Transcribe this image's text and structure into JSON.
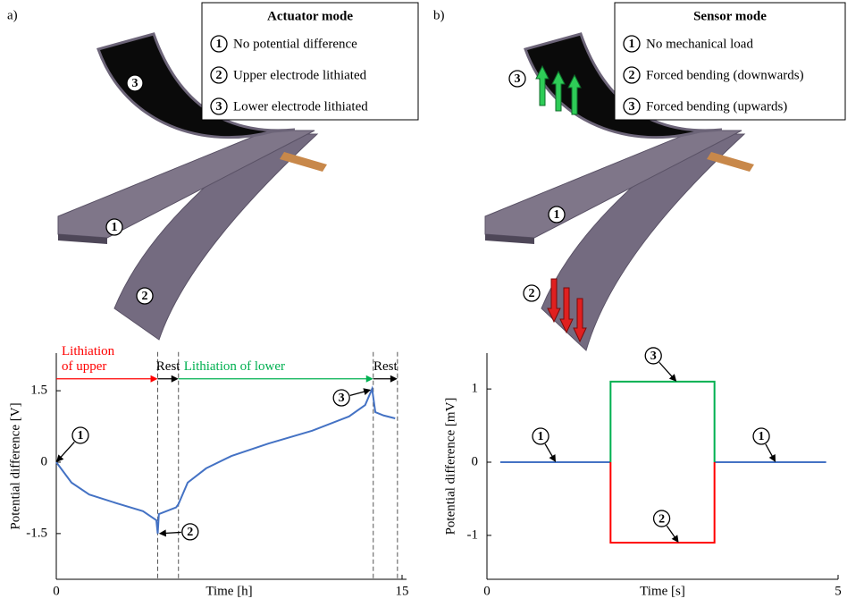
{
  "panels": [
    {
      "label": "a)",
      "mode_box": {
        "title": "Actuator mode",
        "items": [
          {
            "number": "1",
            "text": "No potential difference"
          },
          {
            "number": "2",
            "text": "Upper electrode lithiated"
          },
          {
            "number": "3",
            "text": "Lower electrode lithiated"
          }
        ]
      },
      "markers": [
        "1",
        "2",
        "3"
      ]
    },
    {
      "label": "b)",
      "mode_box": {
        "title": "Sensor mode",
        "items": [
          {
            "number": "1",
            "text": "No mechanical load"
          },
          {
            "number": "2",
            "text": "Forced bending (downwards)"
          },
          {
            "number": "3",
            "text": "Forced bending (upwards)"
          }
        ]
      },
      "markers": [
        "1",
        "2",
        "3"
      ]
    }
  ],
  "chart_data": [
    {
      "type": "line",
      "xlabel": "Time [h]",
      "ylabel": "Potential difference [V]",
      "x": [
        0,
        0.66,
        1.43,
        2.6,
        3.76,
        4.34,
        4.4,
        4.45,
        5.2,
        5.3,
        5.7,
        6.5,
        7.6,
        9.2,
        11.1,
        12.7,
        13.4,
        13.7,
        13.84,
        14.2,
        14.7
      ],
      "series": [
        {
          "color": "#4472c4",
          "values": [
            0,
            -0.43,
            -0.68,
            -0.86,
            -1.03,
            -1.22,
            -1.5,
            -1.09,
            -0.95,
            -0.88,
            -0.43,
            -0.13,
            0.13,
            0.39,
            0.66,
            0.96,
            1.2,
            1.54,
            1.05,
            0.98,
            0.92
          ]
        }
      ],
      "xlim": [
        0,
        15
      ],
      "ylim": [
        -2.46,
        2.29
      ],
      "xticks": [
        0,
        15
      ],
      "yticks": [
        1.5,
        0,
        -1.5
      ],
      "phases": [
        {
          "label": [
            "Lithiation",
            "of upper"
          ],
          "color": "#ff0000",
          "from": 0,
          "to": 4.4
        },
        {
          "label": [
            "Rest"
          ],
          "color": "#000000",
          "from": 4.4,
          "to": 5.3
        },
        {
          "label": [
            "Lithiation of lower"
          ],
          "color": "#00b050",
          "from": 5.3,
          "to": 13.75
        },
        {
          "label": [
            "Rest"
          ],
          "color": "#000000",
          "from": 13.75,
          "to": 14.8
        }
      ],
      "phase_level": 1.75,
      "annotations": [
        {
          "text": "1",
          "x": 0,
          "y": 0
        },
        {
          "text": "2",
          "x": 4.45,
          "y": -1.5
        },
        {
          "text": "3",
          "x": 13.65,
          "y": 1.52
        }
      ]
    },
    {
      "type": "line",
      "xlabel": "Time [s]",
      "ylabel": "Potential difference [mV]",
      "x": [
        0.19,
        1.76,
        1.76,
        3.24,
        3.24,
        4.83
      ],
      "series": [
        {
          "color": "#4472c4",
          "values": [
            0,
            0,
            null,
            null,
            0,
            0
          ]
        },
        {
          "color": "#00b050",
          "values": [
            null,
            0,
            1.1,
            1.1,
            0,
            null
          ]
        },
        {
          "color": "#ff0000",
          "values": [
            null,
            0,
            -1.1,
            -1.1,
            0,
            null
          ]
        }
      ],
      "xlim": [
        0,
        5
      ],
      "ylim": [
        -1.6,
        1.49
      ],
      "xticks": [
        0,
        5
      ],
      "yticks": [
        1,
        0,
        -1
      ],
      "annotations": [
        {
          "text": "1",
          "x": 0.98,
          "y": 0
        },
        {
          "text": "1",
          "x": 4.11,
          "y": 0
        },
        {
          "text": "3",
          "x": 2.7,
          "y": 1.1
        },
        {
          "text": "2",
          "x": 2.73,
          "y": -1.1
        }
      ]
    }
  ]
}
